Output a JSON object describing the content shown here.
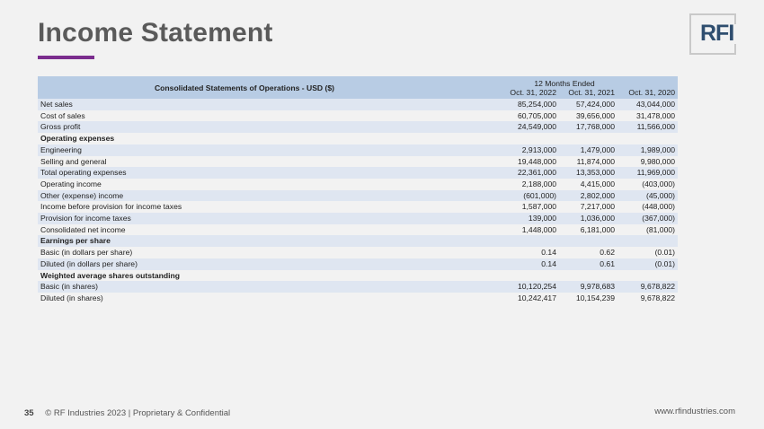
{
  "title": "Income Statement",
  "logo_text": "RFI",
  "table": {
    "header_main": "Consolidated Statements of Operations - USD ($)",
    "header_group": "12 Months Ended",
    "columns": [
      "Oct. 31, 2022",
      "Oct. 31, 2021",
      "Oct. 31, 2020"
    ],
    "rows": [
      {
        "label": "Net sales",
        "values": [
          "85,254,000",
          "57,424,000",
          "43,044,000"
        ],
        "section": false
      },
      {
        "label": "Cost of sales",
        "values": [
          "60,705,000",
          "39,656,000",
          "31,478,000"
        ],
        "section": false
      },
      {
        "label": "Gross profit",
        "values": [
          "24,549,000",
          "17,768,000",
          "11,566,000"
        ],
        "section": false
      },
      {
        "label": "Operating expenses",
        "values": [
          "",
          "",
          ""
        ],
        "section": true
      },
      {
        "label": "Engineering",
        "values": [
          "2,913,000",
          "1,479,000",
          "1,989,000"
        ],
        "section": false
      },
      {
        "label": "Selling and general",
        "values": [
          "19,448,000",
          "11,874,000",
          "9,980,000"
        ],
        "section": false
      },
      {
        "label": "Total operating expenses",
        "values": [
          "22,361,000",
          "13,353,000",
          "11,969,000"
        ],
        "section": false
      },
      {
        "label": "Operating income",
        "values": [
          "2,188,000",
          "4,415,000",
          "(403,000)"
        ],
        "section": false
      },
      {
        "label": "Other (expense) income",
        "values": [
          "(601,000)",
          "2,802,000",
          "(45,000)"
        ],
        "section": false
      },
      {
        "label": "Income before provision for income taxes",
        "values": [
          "1,587,000",
          "7,217,000",
          "(448,000)"
        ],
        "section": false
      },
      {
        "label": "Provision for income taxes",
        "values": [
          "139,000",
          "1,036,000",
          "(367,000)"
        ],
        "section": false
      },
      {
        "label": "Consolidated net income",
        "values": [
          "1,448,000",
          "6,181,000",
          "(81,000)"
        ],
        "section": false
      },
      {
        "label": "Earnings per share",
        "values": [
          "",
          "",
          ""
        ],
        "section": true
      },
      {
        "label": "Basic (in dollars per share)",
        "values": [
          "0.14",
          "0.62",
          "(0.01)"
        ],
        "section": false
      },
      {
        "label": "Diluted (in dollars per share)",
        "values": [
          "0.14",
          "0.61",
          "(0.01)"
        ],
        "section": false
      },
      {
        "label": "Weighted average shares outstanding",
        "values": [
          "",
          "",
          ""
        ],
        "section": true
      },
      {
        "label": "Basic (in shares)",
        "values": [
          "10,120,254",
          "9,978,683",
          "9,678,822"
        ],
        "section": false
      },
      {
        "label": "Diluted (in shares)",
        "values": [
          "10,242,417",
          "10,154,239",
          "9,678,822"
        ],
        "section": false
      }
    ]
  },
  "footer": {
    "page_number": "35",
    "copyright": "© RF Industries 2023 | Proprietary & Confidential",
    "website": "www.rfindustries.com"
  },
  "colors": {
    "accent": "#7b2d8e",
    "header_bg": "#b8cce4",
    "row_alt_bg": "#dfe6f1",
    "logo_text": "#2f4e6f"
  }
}
